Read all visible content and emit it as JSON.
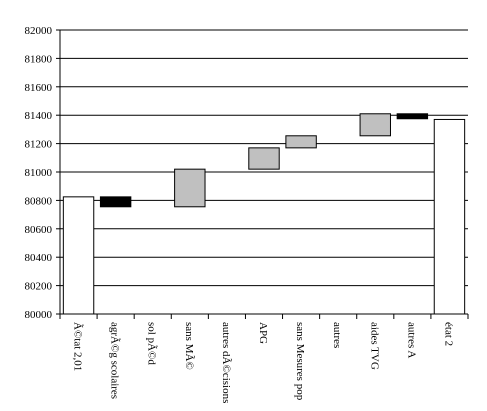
{
  "chart_data": {
    "type": "bar",
    "subtype": "waterfall",
    "title": "",
    "xlabel": "",
    "ylabel": "",
    "ylim": [
      80000,
      82000
    ],
    "yticks": [
      80000,
      80200,
      80400,
      80600,
      80800,
      81000,
      81200,
      81400,
      81600,
      81800,
      82000
    ],
    "ytick_labels": [
      "80000",
      "80200",
      "80400",
      "80600",
      "80800",
      "81000",
      "81200",
      "81400",
      "81600",
      "81800",
      "82000"
    ],
    "grid": "horizontal",
    "legend": "none",
    "categories": [
      "Ã©tat 2,01",
      "agrÃ©g scolaires",
      "sol pÃ©d",
      "sans MÃ©",
      "autres dÃ©cisions",
      "APG",
      "sans Mesures pop",
      "autres",
      "aides TVG",
      "autres A",
      "état 2"
    ],
    "bars": [
      {
        "category_index": 0,
        "kind": "total",
        "base": 80000,
        "top": 80825
      },
      {
        "category_index": 1,
        "kind": "decrease",
        "base": 80755,
        "top": 80825
      },
      {
        "category_index": 3,
        "kind": "increase",
        "base": 80755,
        "top": 81020
      },
      {
        "category_index": 5,
        "kind": "increase",
        "base": 81020,
        "top": 81170
      },
      {
        "category_index": 6,
        "kind": "increase",
        "base": 81170,
        "top": 81255
      },
      {
        "category_index": 8,
        "kind": "increase",
        "base": 81255,
        "top": 81410
      },
      {
        "category_index": 9,
        "kind": "decrease",
        "base": 81375,
        "top": 81410
      },
      {
        "category_index": 10,
        "kind": "total",
        "base": 80000,
        "top": 81370
      }
    ],
    "colors": {
      "total": "#ffffff",
      "increase": "#c0c0c0",
      "decrease": "#000000",
      "outline": "#000000",
      "grid": "#000000",
      "text": "#000000"
    }
  }
}
